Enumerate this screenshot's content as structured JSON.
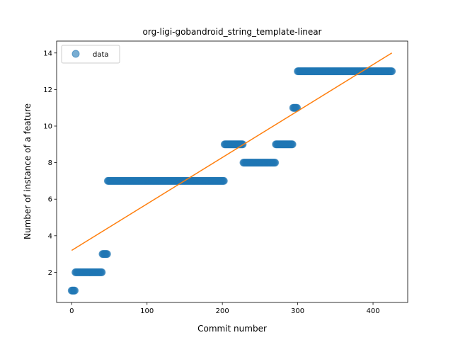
{
  "chart_data": {
    "type": "scatter",
    "title": "org-ligi-gobandroid_string_template-linear",
    "xlabel": "Commit number",
    "ylabel": "Number of instance of a feature",
    "xlim": [
      -20,
      446
    ],
    "ylim": [
      0.35,
      14.65
    ],
    "xticks": [
      0,
      100,
      200,
      300,
      400
    ],
    "yticks": [
      2,
      4,
      6,
      8,
      10,
      12,
      14
    ],
    "grid": false,
    "legend_position": "top-left",
    "colors": {
      "data": "#1f77b4",
      "fit": "#ff7f0e"
    },
    "series": [
      {
        "name": "data",
        "kind": "scatter",
        "segments": [
          {
            "x_start": 0,
            "x_end": 4,
            "y": 1
          },
          {
            "x_start": 5,
            "x_end": 40,
            "y": 2
          },
          {
            "x_start": 41,
            "x_end": 47,
            "y": 3
          },
          {
            "x_start": 48,
            "x_end": 202,
            "y": 7
          },
          {
            "x_start": 203,
            "x_end": 227,
            "y": 9
          },
          {
            "x_start": 228,
            "x_end": 270,
            "y": 8
          },
          {
            "x_start": 271,
            "x_end": 293,
            "y": 9
          },
          {
            "x_start": 294,
            "x_end": 299,
            "y": 11
          },
          {
            "x_start": 300,
            "x_end": 425,
            "y": 13
          }
        ]
      },
      {
        "kind": "line",
        "points": [
          [
            0,
            3.2
          ],
          [
            425,
            14.0
          ]
        ]
      }
    ]
  }
}
